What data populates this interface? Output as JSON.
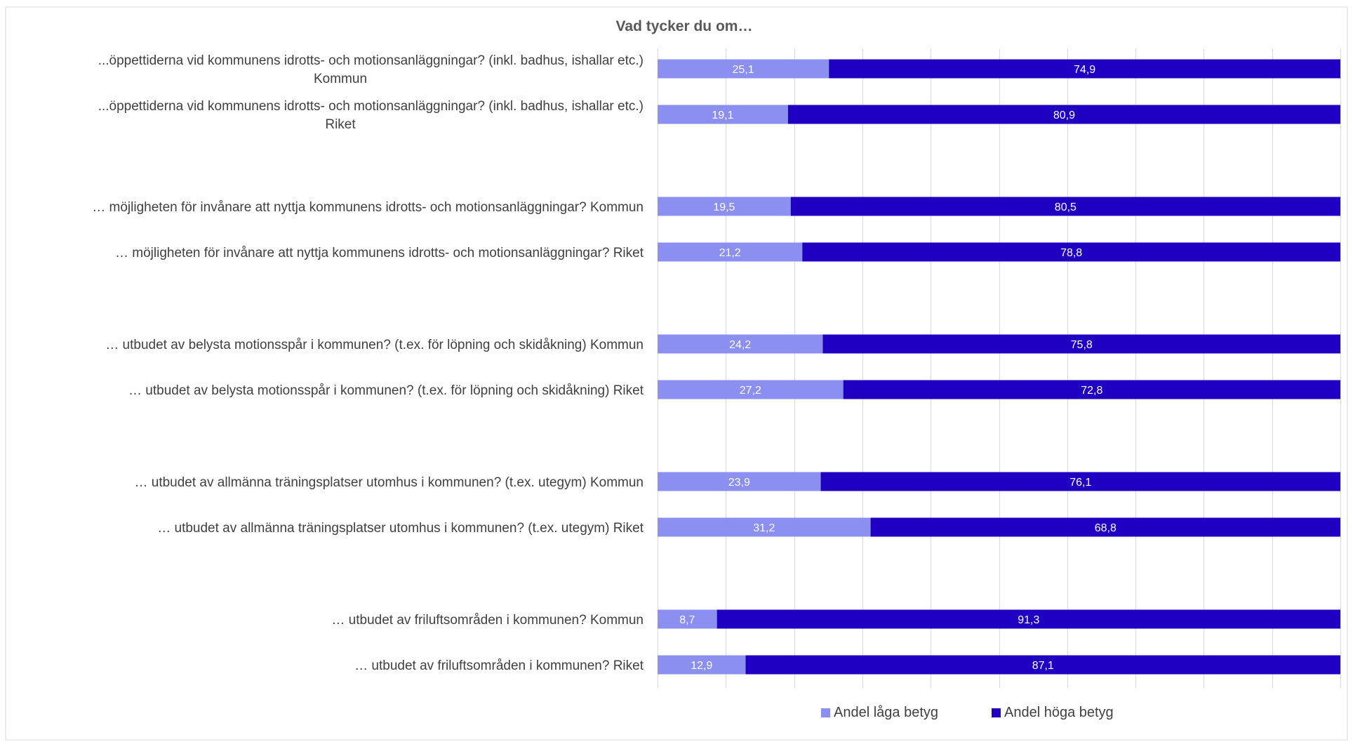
{
  "chart_data": {
    "type": "bar",
    "orientation": "horizontal",
    "stacked": "100%",
    "title": "Vad tycker du om…",
    "categories": [
      [
        "...öppettiderna vid kommunens idrotts- och motionsanläggningar? (inkl. badhus, ishallar etc.)",
        "Kommun"
      ],
      [
        "...öppettiderna vid kommunens idrotts- och motionsanläggningar? (inkl. badhus, ishallar etc.)",
        "Riket"
      ],
      [
        "… möjligheten för invånare att nyttja kommunens idrotts- och motionsanläggningar? Kommun"
      ],
      [
        "… möjligheten för invånare att nyttja kommunens idrotts- och motionsanläggningar? Riket"
      ],
      [
        "… utbudet av belysta motionsspår  i kommunen? (t.ex. för löpning och skidåkning) Kommun"
      ],
      [
        "… utbudet av belysta motionsspår  i kommunen? (t.ex. för löpning och skidåkning) Riket"
      ],
      [
        "… utbudet av allmänna träningsplatser utomhus i kommunen? (t.ex. utegym) Kommun"
      ],
      [
        "… utbudet av allmänna träningsplatser utomhus i kommunen? (t.ex. utegym) Riket"
      ],
      [
        "… utbudet av friluftsområden i kommunen? Kommun"
      ],
      [
        "… utbudet av friluftsområden i kommunen? Riket"
      ]
    ],
    "series": [
      {
        "name": "Andel låga betyg",
        "color": "#8b8ff0",
        "values": [
          25.1,
          19.1,
          19.5,
          21.2,
          24.2,
          27.2,
          23.9,
          31.2,
          8.7,
          12.9
        ],
        "labels": [
          "25,1",
          "19,1",
          "19,5",
          "21,2",
          "24,2",
          "27,2",
          "23,9",
          "31,2",
          "8,7",
          "12,9"
        ]
      },
      {
        "name": "Andel höga betyg",
        "color": "#1f00c2",
        "values": [
          74.9,
          80.9,
          80.5,
          78.8,
          75.8,
          72.8,
          76.1,
          68.8,
          91.3,
          87.1
        ],
        "labels": [
          "74,9",
          "80,9",
          "80,5",
          "78,8",
          "75,8",
          "72,8",
          "76,1",
          "68,8",
          "91,3",
          "87,1"
        ]
      }
    ],
    "xlim": [
      0,
      100
    ],
    "grid": true,
    "legend_position": "bottom"
  }
}
